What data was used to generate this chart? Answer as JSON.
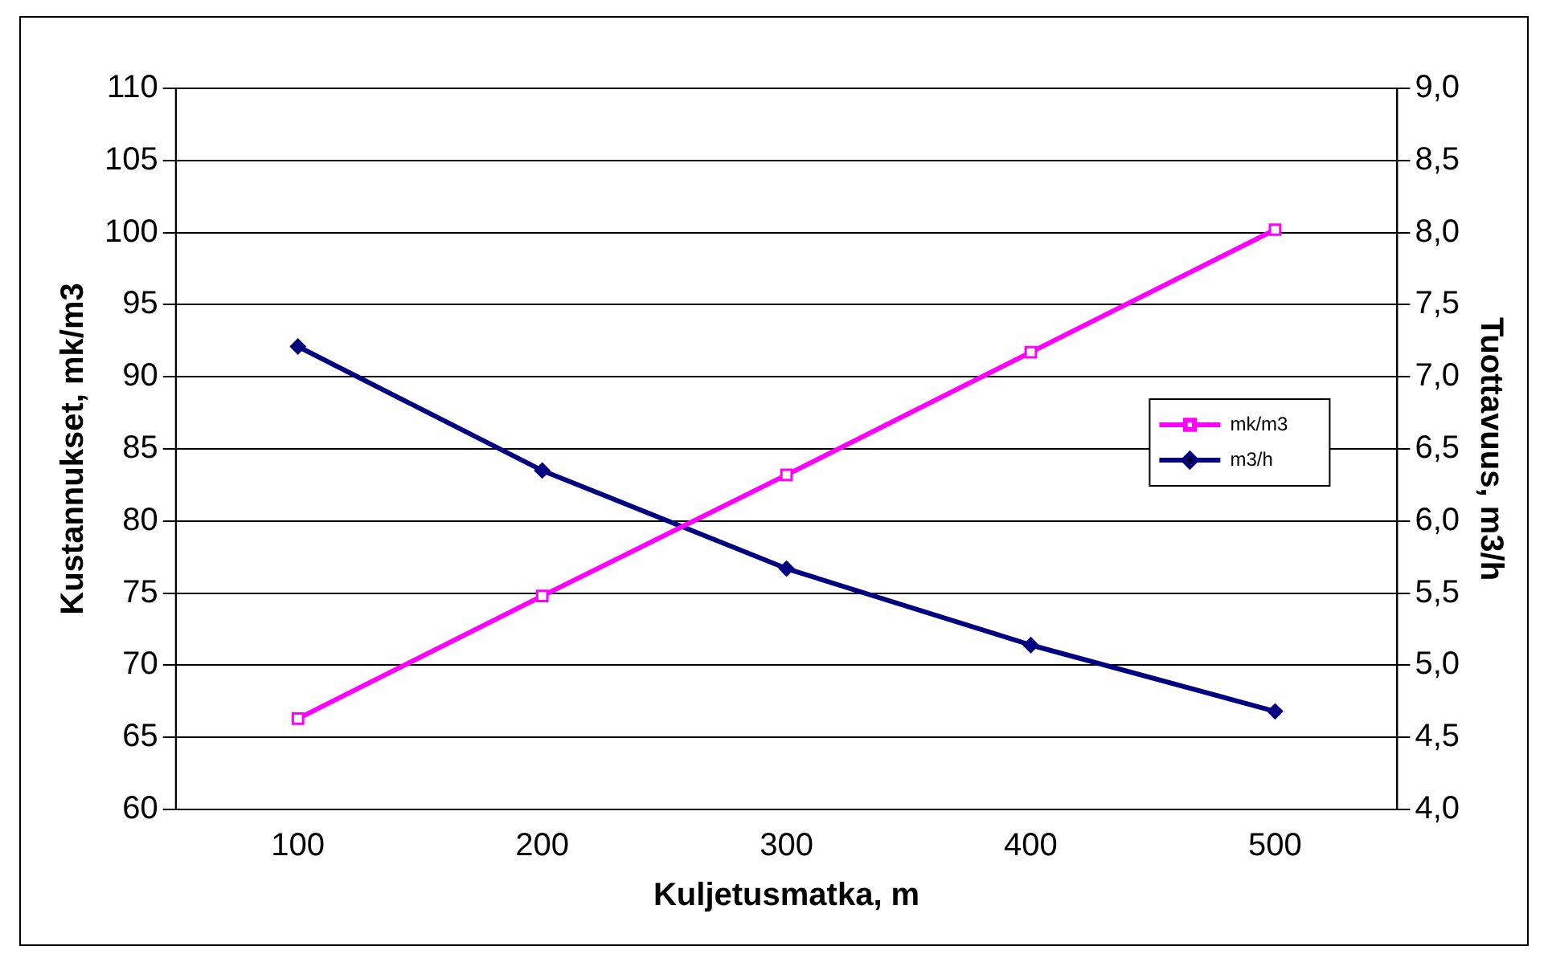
{
  "chart_data": {
    "type": "line",
    "xlabel": "Kuljetusmatka, m",
    "ylabel": "Kustannukset, mk/m3",
    "y2label": "Tuottavuus, m3/h",
    "categories": [
      "100",
      "200",
      "300",
      "400",
      "500"
    ],
    "series": [
      {
        "name": "mk/m3",
        "color": "#ff00ff",
        "marker": "square",
        "values": [
          66.3,
          74.8,
          83.2,
          91.7,
          100.2
        ]
      },
      {
        "name": "m3/h",
        "color": "#000080",
        "marker": "diamond",
        "axis": "y2",
        "values": [
          7.21,
          6.35,
          5.67,
          5.14,
          4.68
        ]
      }
    ],
    "ylim": [
      60,
      110
    ],
    "yticks": [
      60,
      65,
      70,
      75,
      80,
      85,
      90,
      95,
      100,
      105,
      110
    ],
    "y2lim": [
      4,
      9
    ],
    "y2ticks": [
      {
        "value": 4,
        "label": "4,0"
      },
      {
        "value": 4.5,
        "label": "4,5"
      },
      {
        "value": 5,
        "label": "5,0"
      },
      {
        "value": 5.5,
        "label": "5,5"
      },
      {
        "value": 6,
        "label": "6,0"
      },
      {
        "value": 6.5,
        "label": "6,5"
      },
      {
        "value": 7,
        "label": "7,0"
      },
      {
        "value": 7.5,
        "label": "7,5"
      },
      {
        "value": 8,
        "label": "8,0"
      },
      {
        "value": 8.5,
        "label": "8,5"
      },
      {
        "value": 9,
        "label": "9,0"
      }
    ],
    "grid": "y",
    "legend": "right"
  }
}
